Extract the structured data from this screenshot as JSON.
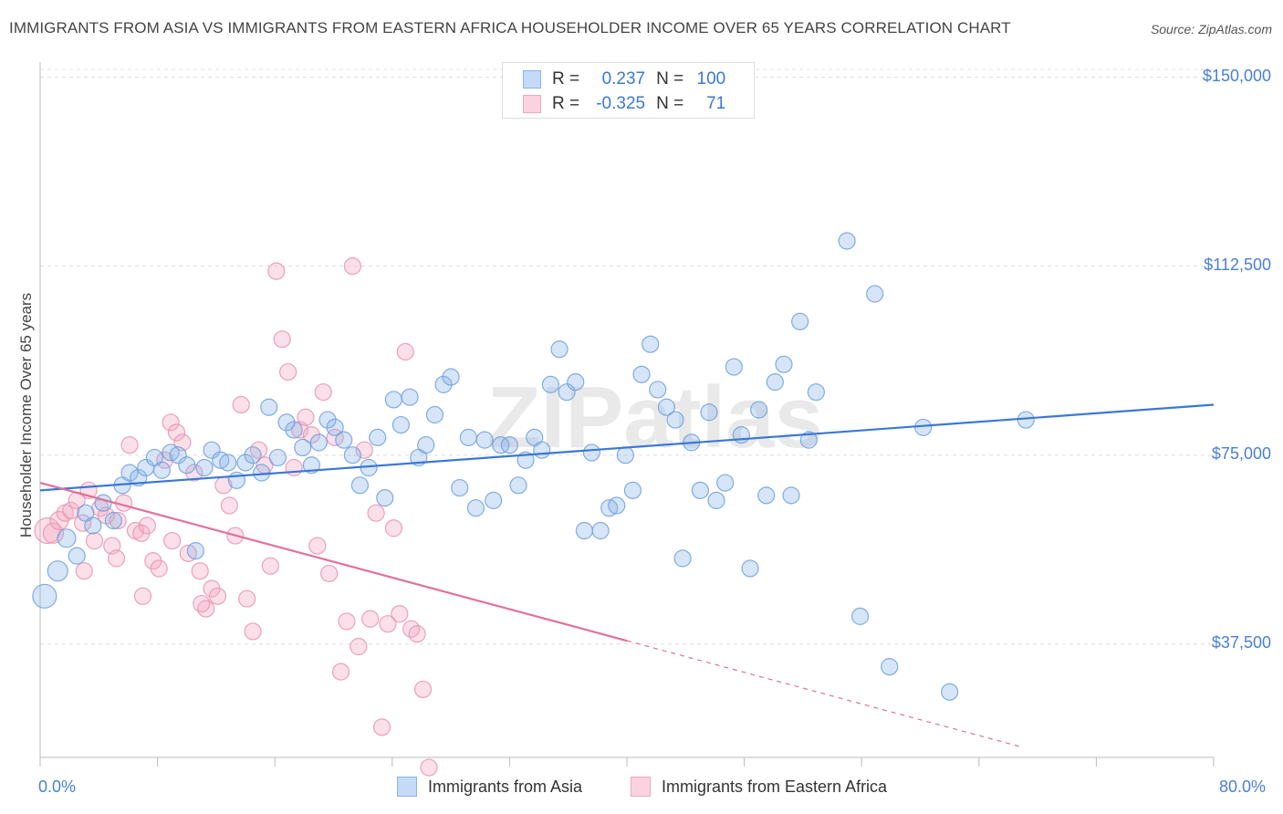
{
  "title": "IMMIGRANTS FROM ASIA VS IMMIGRANTS FROM EASTERN AFRICA HOUSEHOLDER INCOME OVER 65 YEARS CORRELATION CHART",
  "source": "Source: ZipAtlas.com",
  "watermark": "ZIPatlas",
  "colors": {
    "asia": "#8ab4e8",
    "asia_line": "#3a78d6",
    "africa": "#f3a6c0",
    "africa_line": "#e0709a",
    "axis_label": "#4a7fd4"
  },
  "legend": {
    "asia": {
      "r_label": "R =",
      "r_value": "0.237",
      "n_label": "N =",
      "n_value": "100"
    },
    "africa": {
      "r_label": "R =",
      "r_value": "-0.325",
      "n_label": "N =",
      "n_value": "71"
    }
  },
  "chart_data": {
    "type": "scatter",
    "ylabel": "Householder Income Over 65 years",
    "xlim": [
      0,
      80
    ],
    "ylim": [
      15000,
      153000
    ],
    "x_tick_labels": {
      "min": "0.0%",
      "max": "80.0%"
    },
    "y_ticks": [
      {
        "value": 37500,
        "label": "$37,500"
      },
      {
        "value": 75000,
        "label": "$75,000"
      },
      {
        "value": 112500,
        "label": "$112,500"
      },
      {
        "value": 150000,
        "label": "$150,000"
      }
    ],
    "grid": true,
    "legend_position": "top-center",
    "series": [
      {
        "name": "Immigrants from Asia",
        "trend": {
          "x0": 0,
          "y0": 68000,
          "x1": 80,
          "y1": 85000,
          "solid_until": 80
        },
        "points": [
          [
            0.3,
            47000,
            13
          ],
          [
            1.2,
            52000,
            11
          ],
          [
            1.8,
            58500,
            10
          ],
          [
            2.5,
            55000,
            9
          ],
          [
            3.1,
            63500,
            9
          ],
          [
            3.6,
            61000,
            9
          ],
          [
            4.3,
            65500,
            9
          ],
          [
            5.0,
            62000,
            9
          ],
          [
            5.6,
            69000,
            9
          ],
          [
            6.1,
            71500,
            9
          ],
          [
            6.7,
            70500,
            9
          ],
          [
            7.2,
            72500,
            9
          ],
          [
            7.8,
            74500,
            9
          ],
          [
            8.3,
            72000,
            9
          ],
          [
            8.9,
            75500,
            9
          ],
          [
            9.4,
            75000,
            9
          ],
          [
            10.0,
            73000,
            9
          ],
          [
            10.6,
            56000,
            9
          ],
          [
            11.2,
            72500,
            9
          ],
          [
            11.7,
            76000,
            9
          ],
          [
            12.3,
            74000,
            9
          ],
          [
            12.8,
            73500,
            9
          ],
          [
            13.4,
            70000,
            9
          ],
          [
            14.0,
            73500,
            9
          ],
          [
            14.5,
            75000,
            9
          ],
          [
            15.1,
            71500,
            9
          ],
          [
            15.6,
            84500,
            9
          ],
          [
            16.2,
            74500,
            9
          ],
          [
            16.8,
            81500,
            9
          ],
          [
            17.3,
            80000,
            9
          ],
          [
            17.9,
            76500,
            9
          ],
          [
            18.5,
            73000,
            9
          ],
          [
            19.0,
            77500,
            9
          ],
          [
            19.6,
            82000,
            9
          ],
          [
            20.1,
            80500,
            9
          ],
          [
            20.7,
            78000,
            9
          ],
          [
            21.3,
            75000,
            9
          ],
          [
            21.8,
            69000,
            9
          ],
          [
            22.4,
            72500,
            9
          ],
          [
            23.0,
            78500,
            9
          ],
          [
            23.5,
            66500,
            9
          ],
          [
            24.1,
            86000,
            9
          ],
          [
            24.6,
            81000,
            9
          ],
          [
            25.2,
            86500,
            9
          ],
          [
            25.8,
            74500,
            9
          ],
          [
            26.3,
            77000,
            9
          ],
          [
            26.9,
            83000,
            9
          ],
          [
            27.5,
            89000,
            9
          ],
          [
            28.0,
            90500,
            9
          ],
          [
            28.6,
            68500,
            9
          ],
          [
            29.2,
            78500,
            9
          ],
          [
            29.7,
            64500,
            9
          ],
          [
            30.3,
            78000,
            9
          ],
          [
            30.9,
            66000,
            9
          ],
          [
            31.4,
            77000,
            9
          ],
          [
            32.0,
            77000,
            9
          ],
          [
            32.6,
            69000,
            9
          ],
          [
            33.1,
            74000,
            9
          ],
          [
            33.7,
            78500,
            9
          ],
          [
            34.2,
            76000,
            9
          ],
          [
            34.8,
            89000,
            9
          ],
          [
            35.4,
            96000,
            9
          ],
          [
            35.9,
            87500,
            9
          ],
          [
            36.5,
            89500,
            9
          ],
          [
            37.1,
            60000,
            9
          ],
          [
            37.6,
            75500,
            9
          ],
          [
            38.2,
            60000,
            9
          ],
          [
            38.8,
            64500,
            9
          ],
          [
            39.3,
            65000,
            9
          ],
          [
            39.9,
            75000,
            9
          ],
          [
            40.4,
            68000,
            9
          ],
          [
            41.0,
            91000,
            9
          ],
          [
            41.6,
            97000,
            9
          ],
          [
            42.1,
            88000,
            9
          ],
          [
            42.7,
            84500,
            9
          ],
          [
            43.3,
            82000,
            9
          ],
          [
            43.8,
            54500,
            9
          ],
          [
            44.4,
            77500,
            9
          ],
          [
            45.0,
            68000,
            9
          ],
          [
            45.6,
            83500,
            9
          ],
          [
            46.1,
            66000,
            9
          ],
          [
            46.7,
            69500,
            9
          ],
          [
            47.3,
            92500,
            9
          ],
          [
            47.8,
            79000,
            9
          ],
          [
            48.4,
            52500,
            9
          ],
          [
            49.0,
            84000,
            9
          ],
          [
            49.5,
            67000,
            9
          ],
          [
            50.1,
            89500,
            9
          ],
          [
            50.7,
            93000,
            9
          ],
          [
            51.2,
            67000,
            9
          ],
          [
            51.8,
            101500,
            9
          ],
          [
            52.4,
            78000,
            9
          ],
          [
            52.9,
            87500,
            9
          ],
          [
            55.0,
            117500,
            9
          ],
          [
            55.9,
            43000,
            9
          ],
          [
            56.9,
            107000,
            9
          ],
          [
            57.9,
            33000,
            9
          ],
          [
            60.2,
            80500,
            9
          ],
          [
            62.0,
            28000,
            9
          ],
          [
            67.2,
            82000,
            9
          ]
        ]
      },
      {
        "name": "Immigrants from Eastern Africa",
        "trend": {
          "x0": 0,
          "y0": 69500,
          "x1": 67,
          "y1": 17000,
          "solid_until": 40
        },
        "points": [
          [
            0.5,
            60000,
            14
          ],
          [
            0.9,
            59500,
            11
          ],
          [
            1.3,
            62000,
            10
          ],
          [
            1.7,
            63500,
            9
          ],
          [
            2.1,
            64000,
            9
          ],
          [
            2.5,
            66000,
            9
          ],
          [
            2.9,
            61500,
            9
          ],
          [
            3.3,
            68000,
            9
          ],
          [
            3.7,
            58000,
            9
          ],
          [
            4.1,
            64500,
            9
          ],
          [
            4.5,
            63000,
            9
          ],
          [
            4.9,
            57000,
            9
          ],
          [
            5.3,
            62000,
            9
          ],
          [
            5.7,
            65500,
            9
          ],
          [
            6.1,
            77000,
            9
          ],
          [
            6.5,
            60000,
            9
          ],
          [
            6.9,
            59500,
            9
          ],
          [
            7.3,
            61000,
            9
          ],
          [
            7.7,
            54000,
            9
          ],
          [
            8.1,
            52500,
            9
          ],
          [
            8.5,
            74000,
            9
          ],
          [
            8.9,
            81500,
            9
          ],
          [
            9.3,
            79500,
            9
          ],
          [
            9.7,
            77500,
            9
          ],
          [
            10.1,
            55500,
            9
          ],
          [
            10.5,
            71500,
            9
          ],
          [
            10.9,
            52000,
            9
          ],
          [
            11.3,
            44500,
            9
          ],
          [
            11.7,
            48500,
            9
          ],
          [
            12.1,
            47000,
            9
          ],
          [
            12.5,
            69000,
            9
          ],
          [
            12.9,
            65000,
            9
          ],
          [
            13.3,
            59000,
            9
          ],
          [
            13.7,
            85000,
            9
          ],
          [
            14.1,
            46500,
            9
          ],
          [
            14.5,
            40000,
            9
          ],
          [
            14.9,
            76000,
            9
          ],
          [
            15.3,
            73000,
            9
          ],
          [
            15.7,
            53000,
            9
          ],
          [
            16.1,
            111500,
            9
          ],
          [
            16.5,
            98000,
            9
          ],
          [
            16.9,
            91500,
            9
          ],
          [
            17.3,
            72500,
            9
          ],
          [
            17.7,
            80000,
            9
          ],
          [
            18.1,
            82500,
            9
          ],
          [
            18.5,
            79000,
            9
          ],
          [
            18.9,
            57000,
            9
          ],
          [
            19.3,
            87500,
            9
          ],
          [
            19.7,
            51500,
            9
          ],
          [
            20.1,
            78500,
            9
          ],
          [
            20.5,
            32000,
            9
          ],
          [
            20.9,
            42000,
            9
          ],
          [
            21.3,
            112500,
            9
          ],
          [
            21.7,
            37000,
            9
          ],
          [
            22.1,
            76000,
            9
          ],
          [
            22.5,
            42500,
            9
          ],
          [
            22.9,
            63500,
            9
          ],
          [
            23.3,
            21000,
            9
          ],
          [
            23.7,
            41500,
            9
          ],
          [
            24.1,
            60500,
            9
          ],
          [
            24.5,
            43500,
            9
          ],
          [
            24.9,
            95500,
            9
          ],
          [
            25.3,
            40500,
            9
          ],
          [
            25.7,
            39500,
            9
          ],
          [
            26.1,
            28500,
            9
          ],
          [
            26.5,
            13000,
            9
          ],
          [
            5.2,
            54500,
            9
          ],
          [
            7.0,
            47000,
            9
          ],
          [
            9.0,
            58000,
            9
          ],
          [
            11.0,
            45500,
            9
          ],
          [
            3.0,
            52000,
            9
          ]
        ]
      }
    ]
  },
  "bottom_legend": {
    "asia_label": "Immigrants from Asia",
    "africa_label": "Immigrants from Eastern Africa"
  }
}
